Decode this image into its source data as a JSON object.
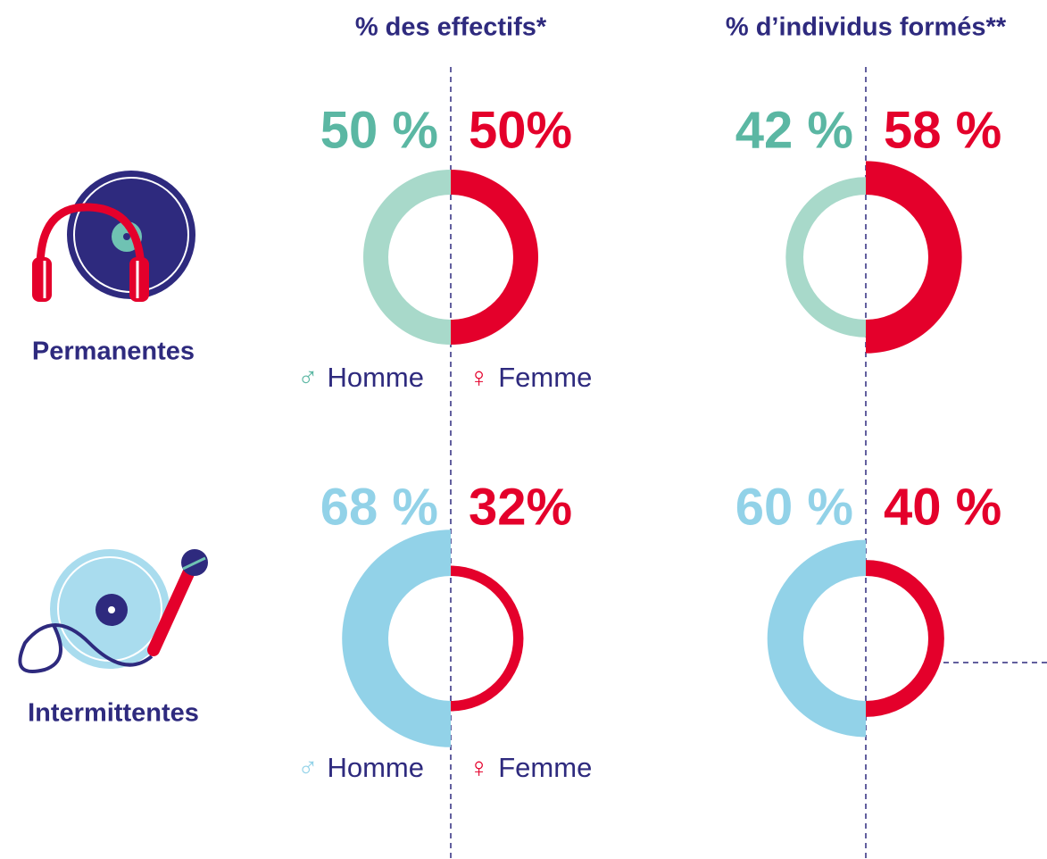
{
  "columns": [
    "% des effectifs*",
    "% d’individus formés**"
  ],
  "rows": [
    "Permanentes",
    "Intermittentes"
  ],
  "chart_data": [
    {
      "type": "split-donut",
      "series": [
        {
          "name": "Homme",
          "symbol": "♂",
          "color": "#a8d9ca",
          "text_color": "#5bb7a3",
          "values": [
            50
          ],
          "value_labels": [
            "50 %"
          ]
        },
        {
          "name": "Femme",
          "symbol": "♀",
          "color": "#e4002b",
          "text_color": "#e4002b",
          "values": [
            50
          ],
          "value_labels": [
            "50%"
          ]
        }
      ]
    },
    {
      "type": "split-donut",
      "series": [
        {
          "name": "Homme",
          "color": "#a8d9ca",
          "text_color": "#5bb7a3",
          "values": [
            42
          ],
          "value_labels": [
            "42 %"
          ]
        },
        {
          "name": "Femme",
          "color": "#e4002b",
          "text_color": "#e4002b",
          "values": [
            58
          ],
          "value_labels": [
            "58 %"
          ]
        }
      ]
    },
    {
      "type": "split-donut",
      "series": [
        {
          "name": "Homme",
          "symbol": "♂",
          "color": "#92d2e8",
          "text_color": "#92d2e8",
          "values": [
            68
          ],
          "value_labels": [
            "68 %"
          ]
        },
        {
          "name": "Femme",
          "symbol": "♀",
          "color": "#e4002b",
          "text_color": "#e4002b",
          "values": [
            32
          ],
          "value_labels": [
            "32%"
          ]
        }
      ]
    },
    {
      "type": "split-donut",
      "series": [
        {
          "name": "Homme",
          "color": "#92d2e8",
          "text_color": "#92d2e8",
          "values": [
            60
          ],
          "value_labels": [
            "60 %"
          ]
        },
        {
          "name": "Femme",
          "color": "#e4002b",
          "text_color": "#e4002b",
          "values": [
            40
          ],
          "value_labels": [
            "40 %"
          ]
        }
      ]
    }
  ]
}
